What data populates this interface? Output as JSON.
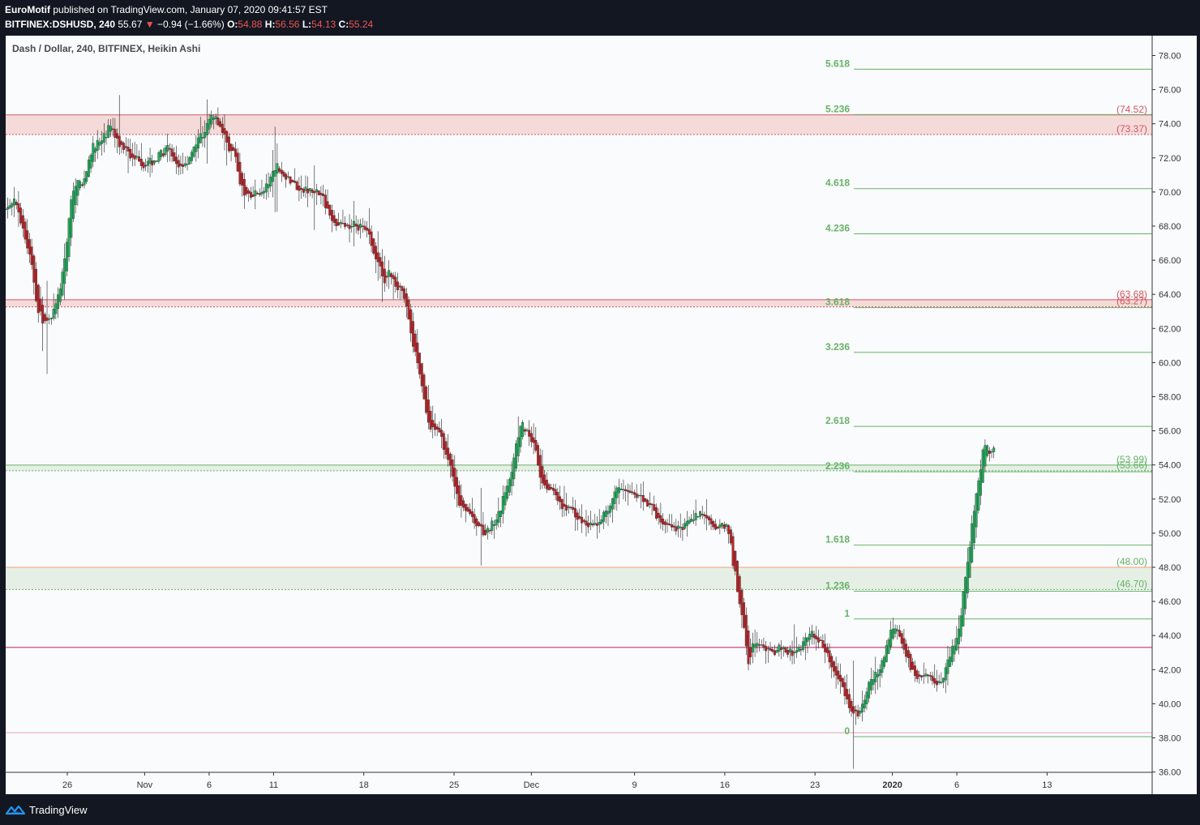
{
  "header": {
    "author": "EuroMotif",
    "published_text": "published on TradingView.com, January 07, 2020 09:41:57 EST",
    "symbol": "BITFINEX:DSHUSD, 240",
    "last": "55.67",
    "arrow": "▼",
    "change": "−0.94 (−1.66%)",
    "o_label": "O:",
    "o_value": "54.88",
    "h_label": "H:",
    "h_value": "56.56",
    "l_label": "L:",
    "l_value": "54.13",
    "c_label": "C:",
    "c_value": "55.24"
  },
  "footer": {
    "brand": "TradingView"
  },
  "colors": {
    "up": "#26a65b",
    "down": "#b2272b",
    "fib": "#66b366",
    "zone_red": "#f5dada",
    "zone_green": "#e5efe5",
    "level_red": "#d0575f",
    "level_green": "#66b366",
    "magenta": "#c2185b",
    "pink": "#e9a3b5",
    "orange": "#f1a36f",
    "bg": "#fafbfd"
  },
  "chart_data": {
    "type": "candlestick",
    "title": "Dash / Dollar, 240, BITFINEX, Heikin Ashi",
    "ylim": [
      36,
      79
    ],
    "y_ticks": [
      "78.00",
      "76.00",
      "74.00",
      "72.00",
      "70.00",
      "68.00",
      "66.00",
      "64.00",
      "62.00",
      "60.00",
      "58.00",
      "56.00",
      "54.00",
      "52.00",
      "50.00",
      "48.00",
      "46.00",
      "44.00",
      "42.00",
      "40.00",
      "38.00",
      "36.00"
    ],
    "x_ticks": [
      {
        "label": "26",
        "day": 0
      },
      {
        "label": "Nov",
        "day": 6
      },
      {
        "label": "6",
        "day": 11
      },
      {
        "label": "11",
        "day": 16
      },
      {
        "label": "18",
        "day": 23
      },
      {
        "label": "25",
        "day": 30
      },
      {
        "label": "Dec",
        "day": 36
      },
      {
        "label": "9",
        "day": 44
      },
      {
        "label": "16",
        "day": 51
      },
      {
        "label": "23",
        "day": 58
      },
      {
        "label": "2020",
        "day": 64
      },
      {
        "label": "6",
        "day": 69
      },
      {
        "label": "13",
        "day": 76
      }
    ],
    "x_bold": [
      "2020"
    ],
    "price_path": [
      [
        -4.8,
        69.0
      ],
      [
        -4.0,
        69.5
      ],
      [
        -3.4,
        67.5
      ],
      [
        -2.7,
        65.0
      ],
      [
        -2.3,
        62.5
      ],
      [
        -1.7,
        62.2
      ],
      [
        -0.8,
        63.5
      ],
      [
        -0.2,
        66.5
      ],
      [
        0.4,
        71.0
      ],
      [
        0.9,
        70.5
      ],
      [
        1.5,
        71.2
      ],
      [
        2.0,
        73.2
      ],
      [
        2.6,
        72.8
      ],
      [
        3.2,
        73.8
      ],
      [
        3.9,
        73.0
      ],
      [
        4.6,
        72.2
      ],
      [
        5.4,
        71.8
      ],
      [
        6.2,
        71.6
      ],
      [
        7.0,
        72.1
      ],
      [
        7.8,
        72.5
      ],
      [
        8.4,
        71.3
      ],
      [
        9.2,
        71.8
      ],
      [
        9.9,
        73.0
      ],
      [
        10.6,
        73.6
      ],
      [
        11.2,
        74.6
      ],
      [
        11.8,
        73.9
      ],
      [
        12.4,
        72.6
      ],
      [
        13.0,
        71.9
      ],
      [
        13.5,
        69.7
      ],
      [
        14.3,
        69.8
      ],
      [
        15.0,
        70.0
      ],
      [
        15.6,
        70.4
      ],
      [
        16.1,
        71.6
      ],
      [
        16.6,
        71.3
      ],
      [
        17.3,
        70.5
      ],
      [
        18.1,
        70.1
      ],
      [
        18.9,
        70.2
      ],
      [
        19.6,
        69.8
      ],
      [
        20.2,
        68.8
      ],
      [
        20.8,
        68.0
      ],
      [
        21.5,
        68.0
      ],
      [
        22.2,
        68.2
      ],
      [
        22.8,
        67.8
      ],
      [
        23.4,
        67.6
      ],
      [
        23.9,
        65.9
      ],
      [
        24.6,
        64.6
      ],
      [
        25.0,
        65.3
      ],
      [
        25.6,
        64.5
      ],
      [
        26.2,
        63.5
      ],
      [
        26.6,
        61.5
      ],
      [
        27.2,
        59.5
      ],
      [
        27.6,
        57.5
      ],
      [
        28.0,
        55.8
      ],
      [
        28.6,
        56.0
      ],
      [
        29.2,
        55.0
      ],
      [
        29.9,
        53.0
      ],
      [
        30.4,
        51.2
      ],
      [
        31.0,
        51.5
      ],
      [
        31.6,
        50.6
      ],
      [
        32.2,
        50.0
      ],
      [
        32.8,
        50.3
      ],
      [
        33.4,
        51.0
      ],
      [
        33.9,
        52.5
      ],
      [
        34.4,
        53.5
      ],
      [
        34.8,
        55.5
      ],
      [
        35.2,
        56.8
      ],
      [
        35.6,
        56.0
      ],
      [
        36.1,
        55.5
      ],
      [
        36.7,
        53.0
      ],
      [
        37.3,
        52.6
      ],
      [
        38.1,
        51.6
      ],
      [
        38.9,
        51.5
      ],
      [
        39.6,
        50.7
      ],
      [
        40.4,
        50.4
      ],
      [
        41.2,
        50.6
      ],
      [
        41.9,
        51.3
      ],
      [
        42.5,
        53.0
      ],
      [
        43.2,
        52.5
      ],
      [
        44.0,
        52.3
      ],
      [
        44.7,
        51.8
      ],
      [
        45.4,
        51.4
      ],
      [
        46.0,
        50.6
      ],
      [
        46.7,
        50.2
      ],
      [
        47.4,
        50.2
      ],
      [
        48.1,
        50.8
      ],
      [
        48.8,
        51.1
      ],
      [
        49.5,
        51.0
      ],
      [
        50.1,
        50.1
      ],
      [
        50.7,
        50.9
      ],
      [
        51.2,
        50.3
      ],
      [
        51.6,
        48.0
      ],
      [
        52.0,
        46.0
      ],
      [
        52.4,
        44.5
      ],
      [
        52.8,
        42.0
      ],
      [
        53.3,
        43.8
      ],
      [
        53.8,
        43.5
      ],
      [
        54.4,
        43.0
      ],
      [
        55.0,
        43.2
      ],
      [
        55.6,
        43.3
      ],
      [
        56.2,
        43.0
      ],
      [
        56.8,
        43.3
      ],
      [
        57.3,
        43.9
      ],
      [
        57.8,
        44.3
      ],
      [
        58.3,
        43.8
      ],
      [
        58.8,
        42.8
      ],
      [
        59.3,
        42.0
      ],
      [
        59.9,
        41.0
      ],
      [
        60.4,
        40.0
      ],
      [
        60.9,
        39.4
      ],
      [
        61.3,
        39.2
      ],
      [
        61.8,
        40.2
      ],
      [
        62.3,
        41.5
      ],
      [
        62.9,
        42.0
      ],
      [
        63.4,
        43.0
      ],
      [
        63.9,
        44.8
      ],
      [
        64.4,
        44.4
      ],
      [
        64.9,
        42.8
      ],
      [
        65.4,
        42.0
      ],
      [
        65.9,
        41.5
      ],
      [
        66.4,
        42.0
      ],
      [
        66.9,
        41.8
      ],
      [
        67.4,
        40.8
      ],
      [
        67.9,
        41.5
      ],
      [
        68.3,
        43.0
      ],
      [
        68.8,
        43.6
      ],
      [
        69.2,
        45.0
      ],
      [
        69.6,
        47.5
      ],
      [
        70.0,
        50.0
      ],
      [
        70.4,
        52.5
      ],
      [
        70.8,
        54.0
      ],
      [
        71.1,
        55.8
      ],
      [
        71.4,
        55.2
      ],
      [
        71.7,
        54.7
      ],
      [
        72.0,
        55.2
      ]
    ],
    "fib_levels": [
      {
        "label": "5.618",
        "value": 77.2
      },
      {
        "label": "5.236",
        "value": 74.54
      },
      {
        "label": "4.618",
        "value": 70.2
      },
      {
        "label": "4.236",
        "value": 67.55
      },
      {
        "label": "3.618",
        "value": 63.22
      },
      {
        "label": "3.236",
        "value": 60.6
      },
      {
        "label": "2.618",
        "value": 56.26
      },
      {
        "label": "2.236",
        "value": 53.6
      },
      {
        "label": "1.618",
        "value": 49.3
      },
      {
        "label": "1.236",
        "value": 46.6
      },
      {
        "label": "1",
        "value": 44.97
      },
      {
        "label": "0",
        "value": 38.07
      }
    ],
    "price_levels": [
      {
        "label": "(74.52)",
        "value": 74.52,
        "color": "red"
      },
      {
        "label": "(73.37)",
        "value": 73.37,
        "color": "red"
      },
      {
        "label": "(63.68)",
        "value": 63.68,
        "color": "red"
      },
      {
        "label": "(63.27)",
        "value": 63.27,
        "color": "red"
      },
      {
        "label": "(53.99)",
        "value": 53.99,
        "color": "green"
      },
      {
        "label": "(53.66)",
        "value": 53.66,
        "color": "green"
      },
      {
        "label": "(48.00)",
        "value": 48.0,
        "color": "green"
      },
      {
        "label": "(46.70)",
        "value": 46.7,
        "color": "green"
      }
    ],
    "zones": [
      {
        "top": 74.52,
        "bottom": 73.37,
        "color": "red"
      },
      {
        "top": 63.68,
        "bottom": 63.27,
        "color": "red"
      },
      {
        "top": 53.99,
        "bottom": 53.66,
        "color": "green"
      },
      {
        "top": 48.0,
        "bottom": 46.7,
        "color": "green"
      }
    ],
    "extra_lines": [
      {
        "value": 43.3,
        "color": "magenta"
      },
      {
        "value": 38.3,
        "color": "pink"
      },
      {
        "value": 48.0,
        "color": "orange"
      }
    ]
  }
}
